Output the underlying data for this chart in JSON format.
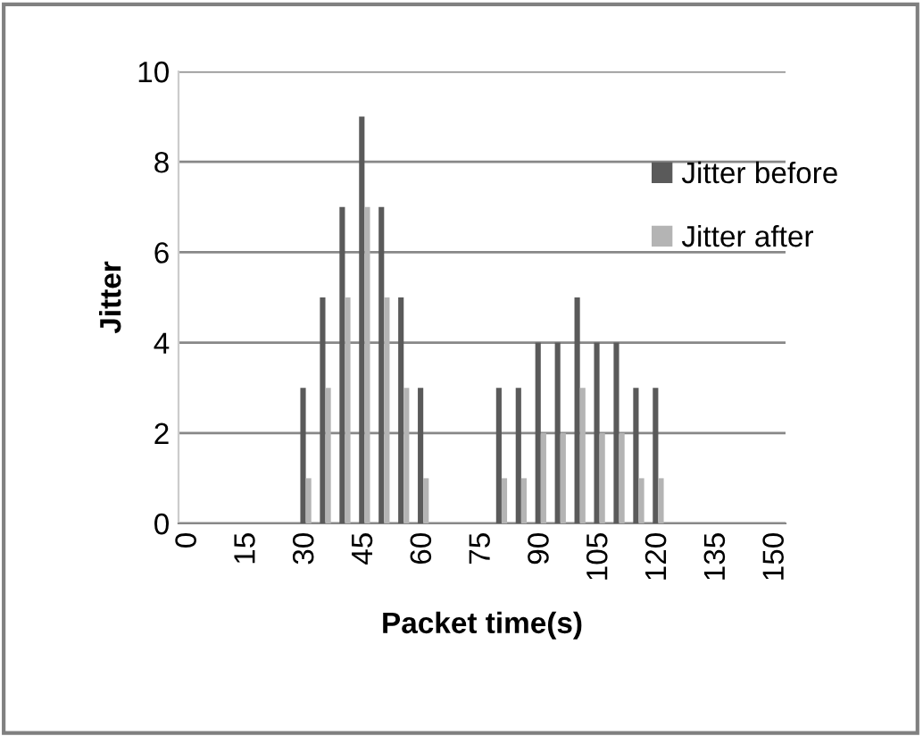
{
  "chart_data": {
    "type": "bar",
    "xlabel": "Packet time(s)",
    "ylabel": "Jitter",
    "categories": [
      "0",
      null,
      null,
      "15",
      null,
      null,
      "30",
      null,
      null,
      "45",
      null,
      null,
      "60",
      null,
      null,
      "75",
      null,
      null,
      "90",
      null,
      null,
      "105",
      null,
      null,
      "120",
      null,
      null,
      "135",
      null,
      null,
      "150"
    ],
    "series": [
      {
        "name": "Jitter before",
        "color": "#5a5a5a",
        "values": [
          null,
          null,
          null,
          null,
          null,
          null,
          3,
          5,
          7,
          9,
          7,
          5,
          3,
          null,
          null,
          null,
          3,
          3,
          4,
          4,
          5,
          4,
          4,
          3,
          3,
          null,
          null,
          null,
          null,
          null,
          null
        ]
      },
      {
        "name": "Jitter after",
        "color": "#b4b4b4",
        "values": [
          null,
          null,
          null,
          null,
          null,
          null,
          1,
          3,
          5,
          7,
          5,
          3,
          1,
          null,
          null,
          null,
          1,
          1,
          2,
          2,
          3,
          2,
          2,
          1,
          1,
          null,
          null,
          null,
          null,
          null,
          null
        ]
      }
    ],
    "ylim": [
      0,
      10
    ],
    "yticks": [
      0,
      2,
      4,
      6,
      8,
      10
    ],
    "grid": "y",
    "legend": "top right"
  }
}
